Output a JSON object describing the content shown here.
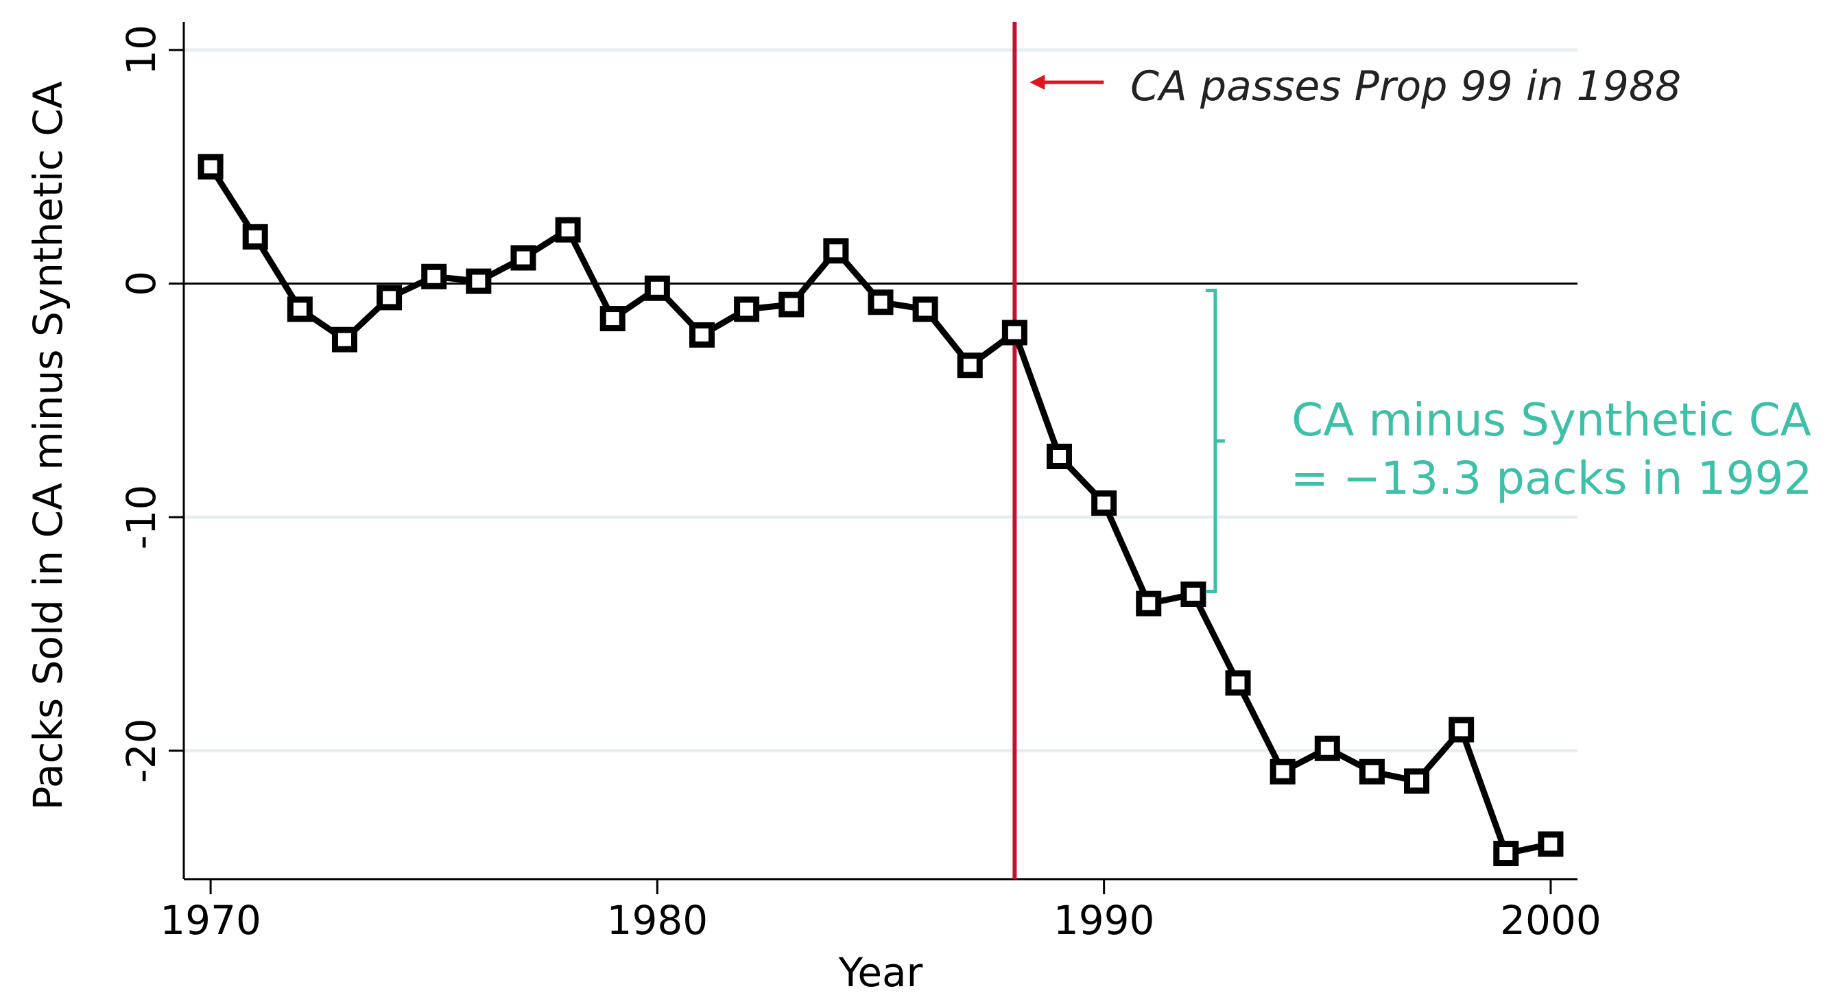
{
  "chart_data": {
    "type": "line",
    "xlabel": "Year",
    "ylabel": "Packs Sold in CA minus Synthetic CA",
    "xlim": [
      1969.4,
      2000.6
    ],
    "ylim": [
      -25.5,
      11.2
    ],
    "x_ticks": [
      1970,
      1980,
      1990,
      2000
    ],
    "y_ticks": [
      10,
      0,
      -10,
      -20
    ],
    "x_tick_labels": [
      "1970",
      "1980",
      "1990",
      "2000"
    ],
    "y_tick_labels": [
      "10",
      "0",
      "-10",
      "-20"
    ],
    "grid": true,
    "series": [
      {
        "x": [
          1970,
          1971,
          1972,
          1973,
          1974,
          1975,
          1976,
          1977,
          1978,
          1979,
          1980,
          1981,
          1982,
          1983,
          1984,
          1985,
          1986,
          1987,
          1988,
          1989,
          1990,
          1991,
          1992,
          1993,
          1994,
          1995,
          1996,
          1997,
          1998,
          1999,
          2000
        ],
        "y": [
          5.0,
          2.0,
          -1.1,
          -2.4,
          -0.6,
          0.3,
          0.1,
          1.1,
          2.3,
          -1.5,
          -0.2,
          -2.2,
          -1.1,
          -0.9,
          1.4,
          -0.8,
          -1.1,
          -3.5,
          -2.1,
          -7.4,
          -9.4,
          -13.7,
          -13.3,
          -17.1,
          -20.9,
          -19.9,
          -20.9,
          -21.3,
          -19.1,
          -24.4,
          -24.0
        ]
      }
    ],
    "reference_lines": {
      "zero_line": 0,
      "event_year": 1988
    },
    "annotations": {
      "event_label": "CA passes Prop 99 in 1988",
      "diff_line1": "CA minus Synthetic CA",
      "diff_line2": "= −13.3 packs in 1992",
      "bracket_year": 1992,
      "bracket_top": 0,
      "bracket_bottom": -13.3
    },
    "colors": {
      "line": "#000000",
      "event_line": "#c8102e",
      "arrow": "#e0141e",
      "diff_annotation": "#3dbfa8",
      "grid": "#e6eef2"
    }
  }
}
